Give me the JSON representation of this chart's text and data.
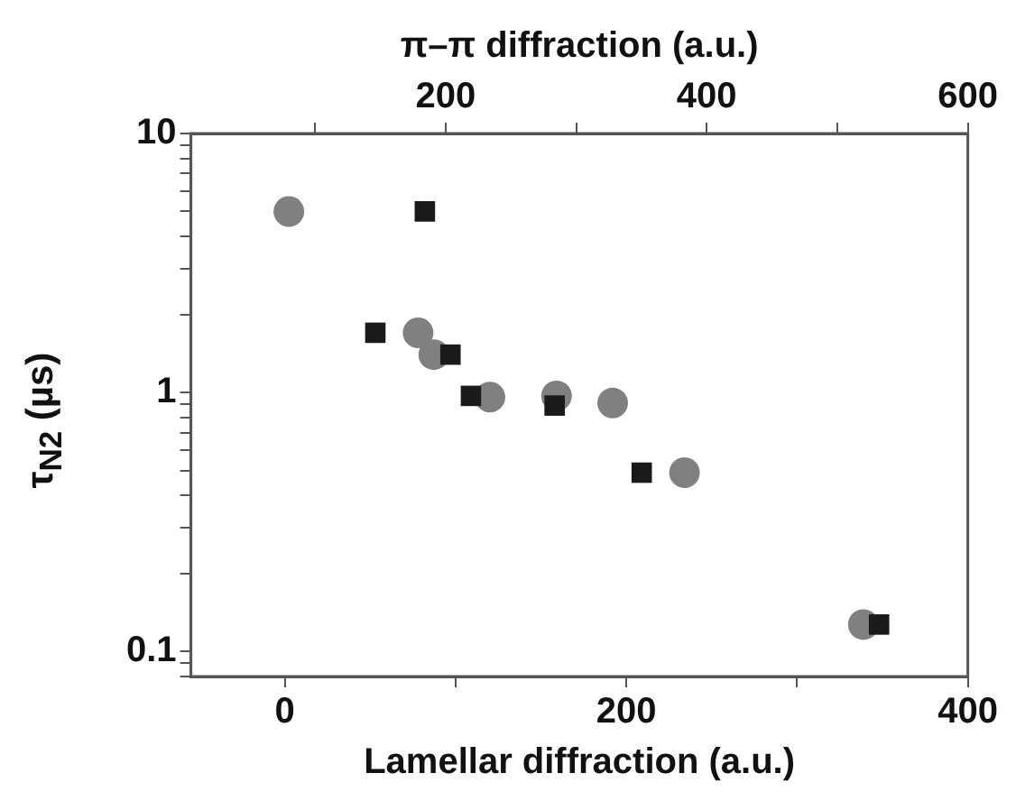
{
  "chart_data": {
    "type": "scatter",
    "xlabel": "Lamellar diffraction (a.u.)",
    "x2label": "π–π diffraction (a.u.)",
    "ylabel": "τ$_{N2}$ (µs)",
    "xlim": [
      -55,
      400
    ],
    "xticks": [
      0,
      {
        "value": 100,
        "label": null
      },
      200,
      {
        "value": 300,
        "label": null
      },
      400
    ],
    "x2lim": [
      5,
      600
    ],
    "x2ticks": [
      {
        "value": 100,
        "label": null
      },
      200,
      {
        "value": 300,
        "label": null
      },
      400,
      {
        "value": 500,
        "label": null
      },
      600
    ],
    "ylim": [
      0.08,
      10
    ],
    "yticks": [
      {
        "value": 0.08,
        "label": null
      },
      {
        "value": 0.09,
        "label": null
      },
      0.1,
      {
        "value": 0.2,
        "label": null
      },
      {
        "value": 0.3,
        "label": null
      },
      {
        "value": 0.4,
        "label": null
      },
      {
        "value": 0.5,
        "label": null
      },
      {
        "value": 0.6,
        "label": null
      },
      {
        "value": 0.7,
        "label": null
      },
      {
        "value": 0.8,
        "label": null
      },
      {
        "value": 0.9,
        "label": null
      },
      1,
      {
        "value": 2,
        "label": null
      },
      {
        "value": 3,
        "label": null
      },
      {
        "value": 4,
        "label": null
      },
      {
        "value": 5,
        "label": null
      },
      {
        "value": 6,
        "label": null
      },
      {
        "value": 7,
        "label": null
      },
      {
        "value": 8,
        "label": null
      },
      {
        "value": 9,
        "label": null
      },
      10
    ],
    "log": "y",
    "grid": false,
    "legend": false,
    "series": [
      {
        "color": "#1a1a1a",
        "marker": "square",
        "x": [
          82,
          53,
          97,
          109,
          158,
          209,
          348
        ],
        "values": [
          5,
          1.7,
          1.4,
          0.97,
          0.89,
          0.49,
          0.127
        ]
      },
      {
        "color": "#808080",
        "marker": "circle",
        "axis": "x2",
        "x": [
          80,
          179,
          191,
          234,
          285,
          328,
          383,
          520
        ],
        "values": [
          5,
          1.7,
          1.4,
          0.96,
          0.97,
          0.91,
          0.49,
          0.127
        ]
      }
    ]
  }
}
